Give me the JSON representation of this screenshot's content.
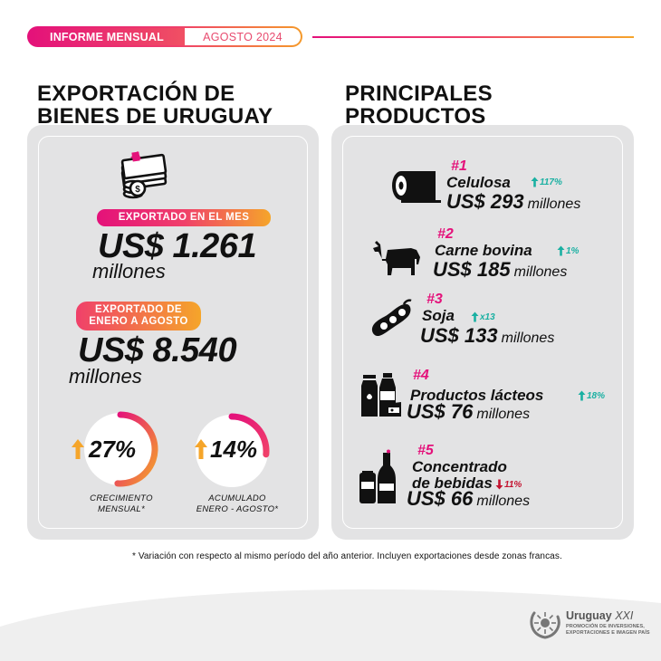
{
  "header": {
    "report_label": "INFORME MENSUAL",
    "period": "AGOSTO 2024"
  },
  "left": {
    "title_line1": "EXPORTACIÓN DE",
    "title_line2": "BIENES DE URUGUAY",
    "month_tag": "EXPORTADO EN EL MES",
    "month_value": "US$ 1.261",
    "month_unit": "millones",
    "ytd_tag_line1": "EXPORTADO DE",
    "ytd_tag_line2": "ENERO A AGOSTO",
    "ytd_value": "US$ 8.540",
    "ytd_unit": "millones",
    "gauges": [
      {
        "value": "27%",
        "fraction": 0.27,
        "caption_line1": "CRECIMIENTO",
        "caption_line2": "MENSUAL*"
      },
      {
        "value": "14%",
        "fraction": 0.14,
        "caption_line1": "ACUMULADO",
        "caption_line2": "ENERO - AGOSTO*"
      }
    ]
  },
  "right": {
    "title_line1": "PRINCIPALES",
    "title_line2": "PRODUCTOS",
    "products": [
      {
        "rank": "#1",
        "name": "Celulosa",
        "growth": "117%",
        "direction": "up",
        "value": "US$ 293",
        "unit": "millones",
        "icon": "pulp-roll-icon"
      },
      {
        "rank": "#2",
        "name": "Carne bovina",
        "growth": "1%",
        "direction": "up",
        "value": "US$ 185",
        "unit": "millones",
        "icon": "cow-icon"
      },
      {
        "rank": "#3",
        "name": "Soja",
        "growth": "x13",
        "direction": "up",
        "value": "US$ 133",
        "unit": "millones",
        "icon": "soybean-icon"
      },
      {
        "rank": "#4",
        "name": "Productos lácteos",
        "growth": "18%",
        "direction": "up",
        "value": "US$ 76",
        "unit": "millones",
        "icon": "dairy-icon"
      },
      {
        "rank": "#5",
        "name_line1": "Concentrado",
        "name_line2": "de bebidas",
        "growth": "11%",
        "direction": "down",
        "value": "US$ 66",
        "unit": "millones",
        "icon": "beverage-icon"
      }
    ]
  },
  "footnote": "* Variación con respecto al mismo período del año anterior. Incluyen exportaciones desde zonas francas.",
  "logo": {
    "name": "Uruguay",
    "suffix": "XXI",
    "sub_line1": "PROMOCIÓN DE INVERSIONES,",
    "sub_line2": "EXPORTACIONES E IMAGEN PAÍS"
  },
  "colors": {
    "magenta": "#e4117a",
    "orange": "#f5a52a",
    "teal": "#1ab0a2",
    "red": "#c4122f",
    "panel": "#e3e3e4"
  }
}
